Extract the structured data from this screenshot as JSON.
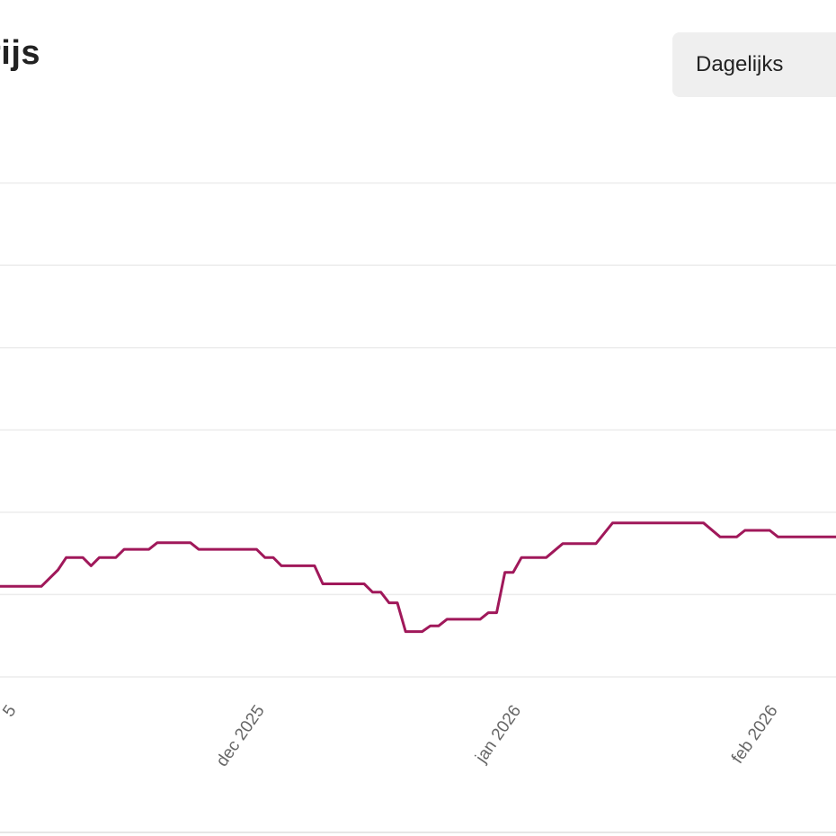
{
  "header": {
    "title": "rijs",
    "period_select": "Dagelijks"
  },
  "chart_data": {
    "type": "line",
    "title": "",
    "xlabel": "",
    "ylabel": "",
    "grid": true,
    "legend": "none",
    "y_tick_labels_visible": false,
    "x_ticks": [
      {
        "date": "2025-11-01",
        "label": "5"
      },
      {
        "date": "2025-12-01",
        "label": "dec 2025"
      },
      {
        "date": "2026-01-01",
        "label": "jan 2026"
      },
      {
        "date": "2026-02-01",
        "label": "feb 2026"
      }
    ],
    "xlim": [
      "2025-10-30",
      "2026-02-08"
    ],
    "ylim": [
      0,
      7
    ],
    "series": [
      {
        "color": "#a0185a",
        "points": [
          [
            "2025-10-30",
            1.1
          ],
          [
            "2025-11-04",
            1.1
          ],
          [
            "2025-11-06",
            1.3
          ],
          [
            "2025-11-07",
            1.45
          ],
          [
            "2025-11-09",
            1.45
          ],
          [
            "2025-11-10",
            1.35
          ],
          [
            "2025-11-11",
            1.45
          ],
          [
            "2025-11-13",
            1.45
          ],
          [
            "2025-11-14",
            1.55
          ],
          [
            "2025-11-17",
            1.55
          ],
          [
            "2025-11-18",
            1.63
          ],
          [
            "2025-11-22",
            1.63
          ],
          [
            "2025-11-23",
            1.55
          ],
          [
            "2025-11-30",
            1.55
          ],
          [
            "2025-12-01",
            1.45
          ],
          [
            "2025-12-02",
            1.45
          ],
          [
            "2025-12-03",
            1.35
          ],
          [
            "2025-12-07",
            1.35
          ],
          [
            "2025-12-08",
            1.13
          ],
          [
            "2025-12-13",
            1.13
          ],
          [
            "2025-12-14",
            1.03
          ],
          [
            "2025-12-15",
            1.03
          ],
          [
            "2025-12-16",
            0.9
          ],
          [
            "2025-12-17",
            0.9
          ],
          [
            "2025-12-18",
            0.55
          ],
          [
            "2025-12-20",
            0.55
          ],
          [
            "2025-12-21",
            0.62
          ],
          [
            "2025-12-22",
            0.62
          ],
          [
            "2025-12-23",
            0.7
          ],
          [
            "2025-12-27",
            0.7
          ],
          [
            "2025-12-28",
            0.78
          ],
          [
            "2025-12-29",
            0.78
          ],
          [
            "2025-12-30",
            1.27
          ],
          [
            "2025-12-31",
            1.27
          ],
          [
            "2026-01-01",
            1.45
          ],
          [
            "2026-01-04",
            1.45
          ],
          [
            "2026-01-06",
            1.62
          ],
          [
            "2026-01-10",
            1.62
          ],
          [
            "2026-01-12",
            1.87
          ],
          [
            "2026-01-23",
            1.87
          ],
          [
            "2026-01-25",
            1.7
          ],
          [
            "2026-01-27",
            1.7
          ],
          [
            "2026-01-28",
            1.78
          ],
          [
            "2026-01-31",
            1.78
          ],
          [
            "2026-02-01",
            1.7
          ],
          [
            "2026-02-08",
            1.7
          ]
        ]
      }
    ]
  }
}
